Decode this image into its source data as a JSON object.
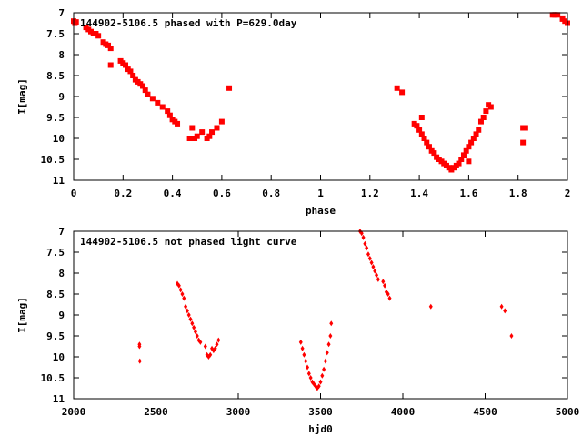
{
  "chart_data": [
    {
      "type": "scatter",
      "title": "144902-5106.5 phased with P=629.0day",
      "xlabel": "phase",
      "ylabel": "I[mag]",
      "xlim": [
        0,
        2
      ],
      "ylim": [
        11,
        7
      ],
      "y_inverted": true,
      "xticks": [
        0,
        0.2,
        0.4,
        0.6,
        0.8,
        1,
        1.2,
        1.4,
        1.6,
        1.8,
        2
      ],
      "yticks": [
        7,
        7.5,
        8,
        8.5,
        9,
        9.5,
        10,
        10.5,
        11
      ],
      "marker": "filled-square",
      "color": "#ff0000",
      "series": [
        {
          "points": [
            [
              0.0,
              7.2
            ],
            [
              0.005,
              7.25
            ],
            [
              0.01,
              7.22
            ],
            [
              0.05,
              7.35
            ],
            [
              0.06,
              7.4
            ],
            [
              0.07,
              7.45
            ],
            [
              0.08,
              7.5
            ],
            [
              0.09,
              7.5
            ],
            [
              0.1,
              7.55
            ],
            [
              0.12,
              7.7
            ],
            [
              0.13,
              7.75
            ],
            [
              0.14,
              7.78
            ],
            [
              0.15,
              7.85
            ],
            [
              0.15,
              8.25
            ],
            [
              0.19,
              8.15
            ],
            [
              0.2,
              8.2
            ],
            [
              0.21,
              8.25
            ],
            [
              0.22,
              8.35
            ],
            [
              0.23,
              8.4
            ],
            [
              0.24,
              8.5
            ],
            [
              0.25,
              8.6
            ],
            [
              0.26,
              8.65
            ],
            [
              0.27,
              8.7
            ],
            [
              0.28,
              8.75
            ],
            [
              0.29,
              8.85
            ],
            [
              0.3,
              8.95
            ],
            [
              0.32,
              9.05
            ],
            [
              0.34,
              9.15
            ],
            [
              0.36,
              9.25
            ],
            [
              0.38,
              9.35
            ],
            [
              0.39,
              9.45
            ],
            [
              0.4,
              9.55
            ],
            [
              0.41,
              9.6
            ],
            [
              0.42,
              9.65
            ],
            [
              0.47,
              10.0
            ],
            [
              0.48,
              9.75
            ],
            [
              0.49,
              10.0
            ],
            [
              0.5,
              9.95
            ],
            [
              0.52,
              9.85
            ],
            [
              0.54,
              10.0
            ],
            [
              0.55,
              9.95
            ],
            [
              0.56,
              9.85
            ],
            [
              0.58,
              9.75
            ],
            [
              0.6,
              9.6
            ],
            [
              0.63,
              8.8
            ],
            [
              1.31,
              8.8
            ],
            [
              1.33,
              8.9
            ],
            [
              1.38,
              9.65
            ],
            [
              1.39,
              9.7
            ],
            [
              1.4,
              9.8
            ],
            [
              1.41,
              9.9
            ],
            [
              1.42,
              10.0
            ],
            [
              1.43,
              10.1
            ],
            [
              1.44,
              10.2
            ],
            [
              1.45,
              10.3
            ],
            [
              1.46,
              10.35
            ],
            [
              1.47,
              10.45
            ],
            [
              1.48,
              10.5
            ],
            [
              1.49,
              10.55
            ],
            [
              1.5,
              10.6
            ],
            [
              1.51,
              10.65
            ],
            [
              1.52,
              10.7
            ],
            [
              1.53,
              10.75
            ],
            [
              1.54,
              10.7
            ],
            [
              1.55,
              10.65
            ],
            [
              1.56,
              10.6
            ],
            [
              1.57,
              10.5
            ],
            [
              1.58,
              10.4
            ],
            [
              1.59,
              10.3
            ],
            [
              1.6,
              10.2
            ],
            [
              1.61,
              10.1
            ],
            [
              1.62,
              10.0
            ],
            [
              1.63,
              9.9
            ],
            [
              1.64,
              9.8
            ],
            [
              1.65,
              9.6
            ],
            [
              1.66,
              9.5
            ],
            [
              1.67,
              9.35
            ],
            [
              1.68,
              9.2
            ],
            [
              1.69,
              9.25
            ],
            [
              1.41,
              9.5
            ],
            [
              1.6,
              10.55
            ],
            [
              1.82,
              9.75
            ],
            [
              1.82,
              10.1
            ],
            [
              1.83,
              9.75
            ],
            [
              1.94,
              7.05
            ],
            [
              1.95,
              7.05
            ],
            [
              1.96,
              7.05
            ],
            [
              1.98,
              7.15
            ],
            [
              1.99,
              7.2
            ],
            [
              2.0,
              7.25
            ]
          ]
        }
      ]
    },
    {
      "type": "scatter",
      "title": "144902-5106.5 not phased light curve",
      "xlabel": "hjd0",
      "ylabel": "I[mag]",
      "xlim": [
        2000,
        5000
      ],
      "ylim": [
        11,
        7
      ],
      "y_inverted": true,
      "xticks": [
        2000,
        2500,
        3000,
        3500,
        4000,
        4500,
        5000
      ],
      "yticks": [
        7,
        7.5,
        8,
        8.5,
        9,
        9.5,
        10,
        10.5,
        11
      ],
      "marker": "filled-diamond",
      "color": "#ff0000",
      "series": [
        {
          "points": [
            [
              2400,
              9.7
            ],
            [
              2400,
              9.75
            ],
            [
              2402,
              10.1
            ],
            [
              2630,
              8.25
            ],
            [
              2640,
              8.3
            ],
            [
              2650,
              8.4
            ],
            [
              2660,
              8.5
            ],
            [
              2670,
              8.6
            ],
            [
              2680,
              8.8
            ],
            [
              2690,
              8.9
            ],
            [
              2700,
              9.0
            ],
            [
              2710,
              9.1
            ],
            [
              2720,
              9.2
            ],
            [
              2730,
              9.3
            ],
            [
              2740,
              9.4
            ],
            [
              2750,
              9.5
            ],
            [
              2760,
              9.6
            ],
            [
              2770,
              9.65
            ],
            [
              2800,
              9.75
            ],
            [
              2810,
              9.95
            ],
            [
              2820,
              10.0
            ],
            [
              2830,
              9.95
            ],
            [
              2840,
              9.8
            ],
            [
              2850,
              9.85
            ],
            [
              2860,
              9.8
            ],
            [
              2870,
              9.7
            ],
            [
              2880,
              9.6
            ],
            [
              3380,
              9.65
            ],
            [
              3390,
              9.8
            ],
            [
              3400,
              9.95
            ],
            [
              3410,
              10.1
            ],
            [
              3420,
              10.25
            ],
            [
              3430,
              10.4
            ],
            [
              3440,
              10.5
            ],
            [
              3450,
              10.6
            ],
            [
              3460,
              10.65
            ],
            [
              3470,
              10.7
            ],
            [
              3480,
              10.75
            ],
            [
              3490,
              10.7
            ],
            [
              3500,
              10.6
            ],
            [
              3510,
              10.45
            ],
            [
              3520,
              10.3
            ],
            [
              3530,
              10.1
            ],
            [
              3540,
              9.9
            ],
            [
              3550,
              9.7
            ],
            [
              3560,
              9.5
            ],
            [
              3565,
              9.2
            ],
            [
              3740,
              7.0
            ],
            [
              3750,
              7.05
            ],
            [
              3760,
              7.15
            ],
            [
              3770,
              7.3
            ],
            [
              3780,
              7.4
            ],
            [
              3790,
              7.55
            ],
            [
              3800,
              7.65
            ],
            [
              3810,
              7.75
            ],
            [
              3820,
              7.85
            ],
            [
              3830,
              7.95
            ],
            [
              3840,
              8.05
            ],
            [
              3850,
              8.15
            ],
            [
              3880,
              8.2
            ],
            [
              3890,
              8.3
            ],
            [
              3900,
              8.45
            ],
            [
              3910,
              8.5
            ],
            [
              3920,
              8.6
            ],
            [
              4170,
              8.8
            ],
            [
              4600,
              8.8
            ],
            [
              4620,
              8.9
            ],
            [
              4660,
              9.5
            ]
          ]
        }
      ]
    }
  ]
}
